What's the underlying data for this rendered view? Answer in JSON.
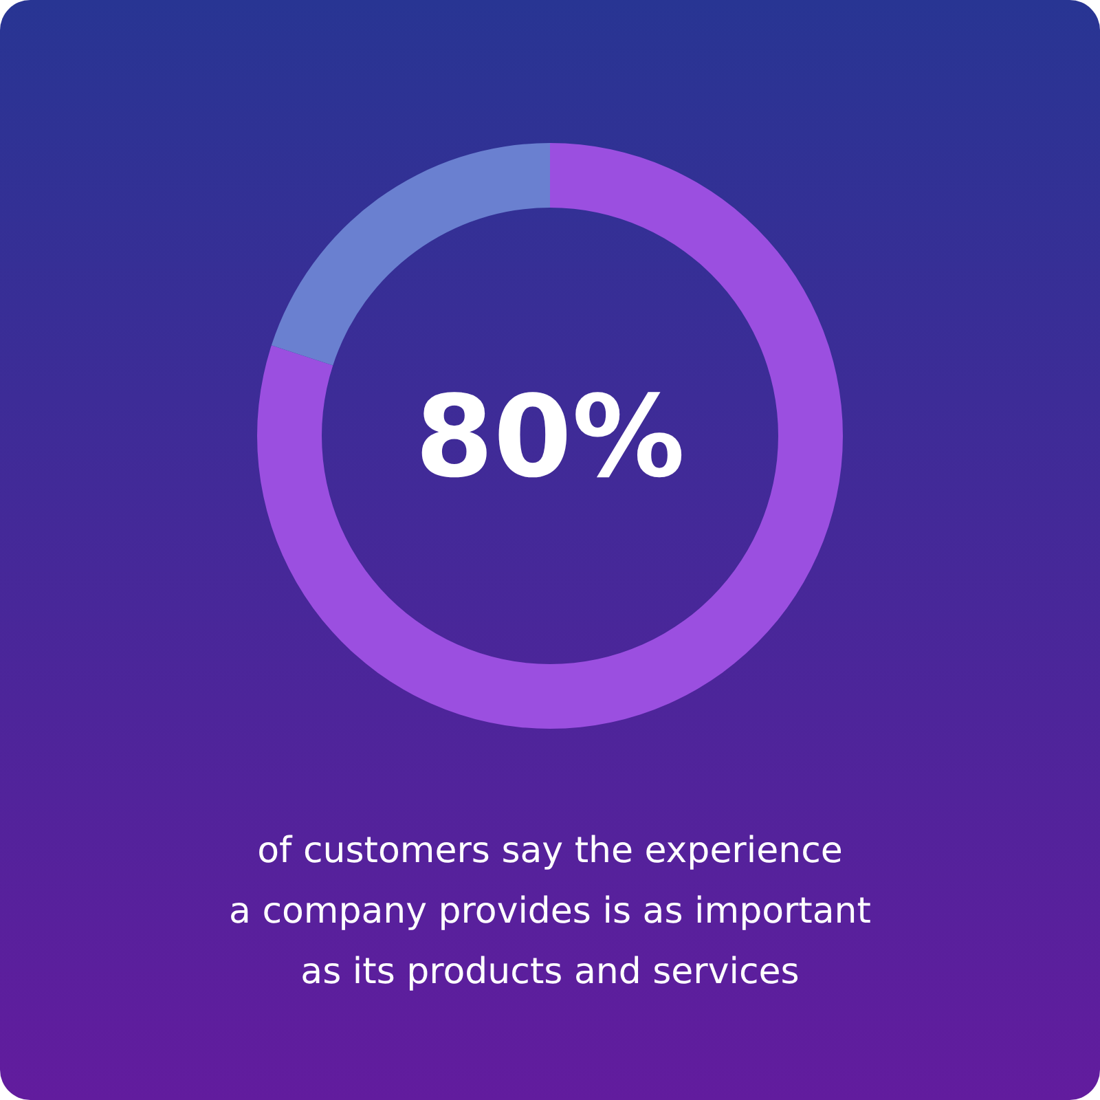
{
  "chart_data": {
    "type": "donut",
    "categories": [
      null,
      null
    ],
    "values": [
      80,
      20
    ],
    "colors": [
      "#9b4fe0",
      "#6a80d0"
    ],
    "annotations": [
      "80%",
      "of customers say the experience\na company provides is as important\nas its products and services"
    ]
  }
}
